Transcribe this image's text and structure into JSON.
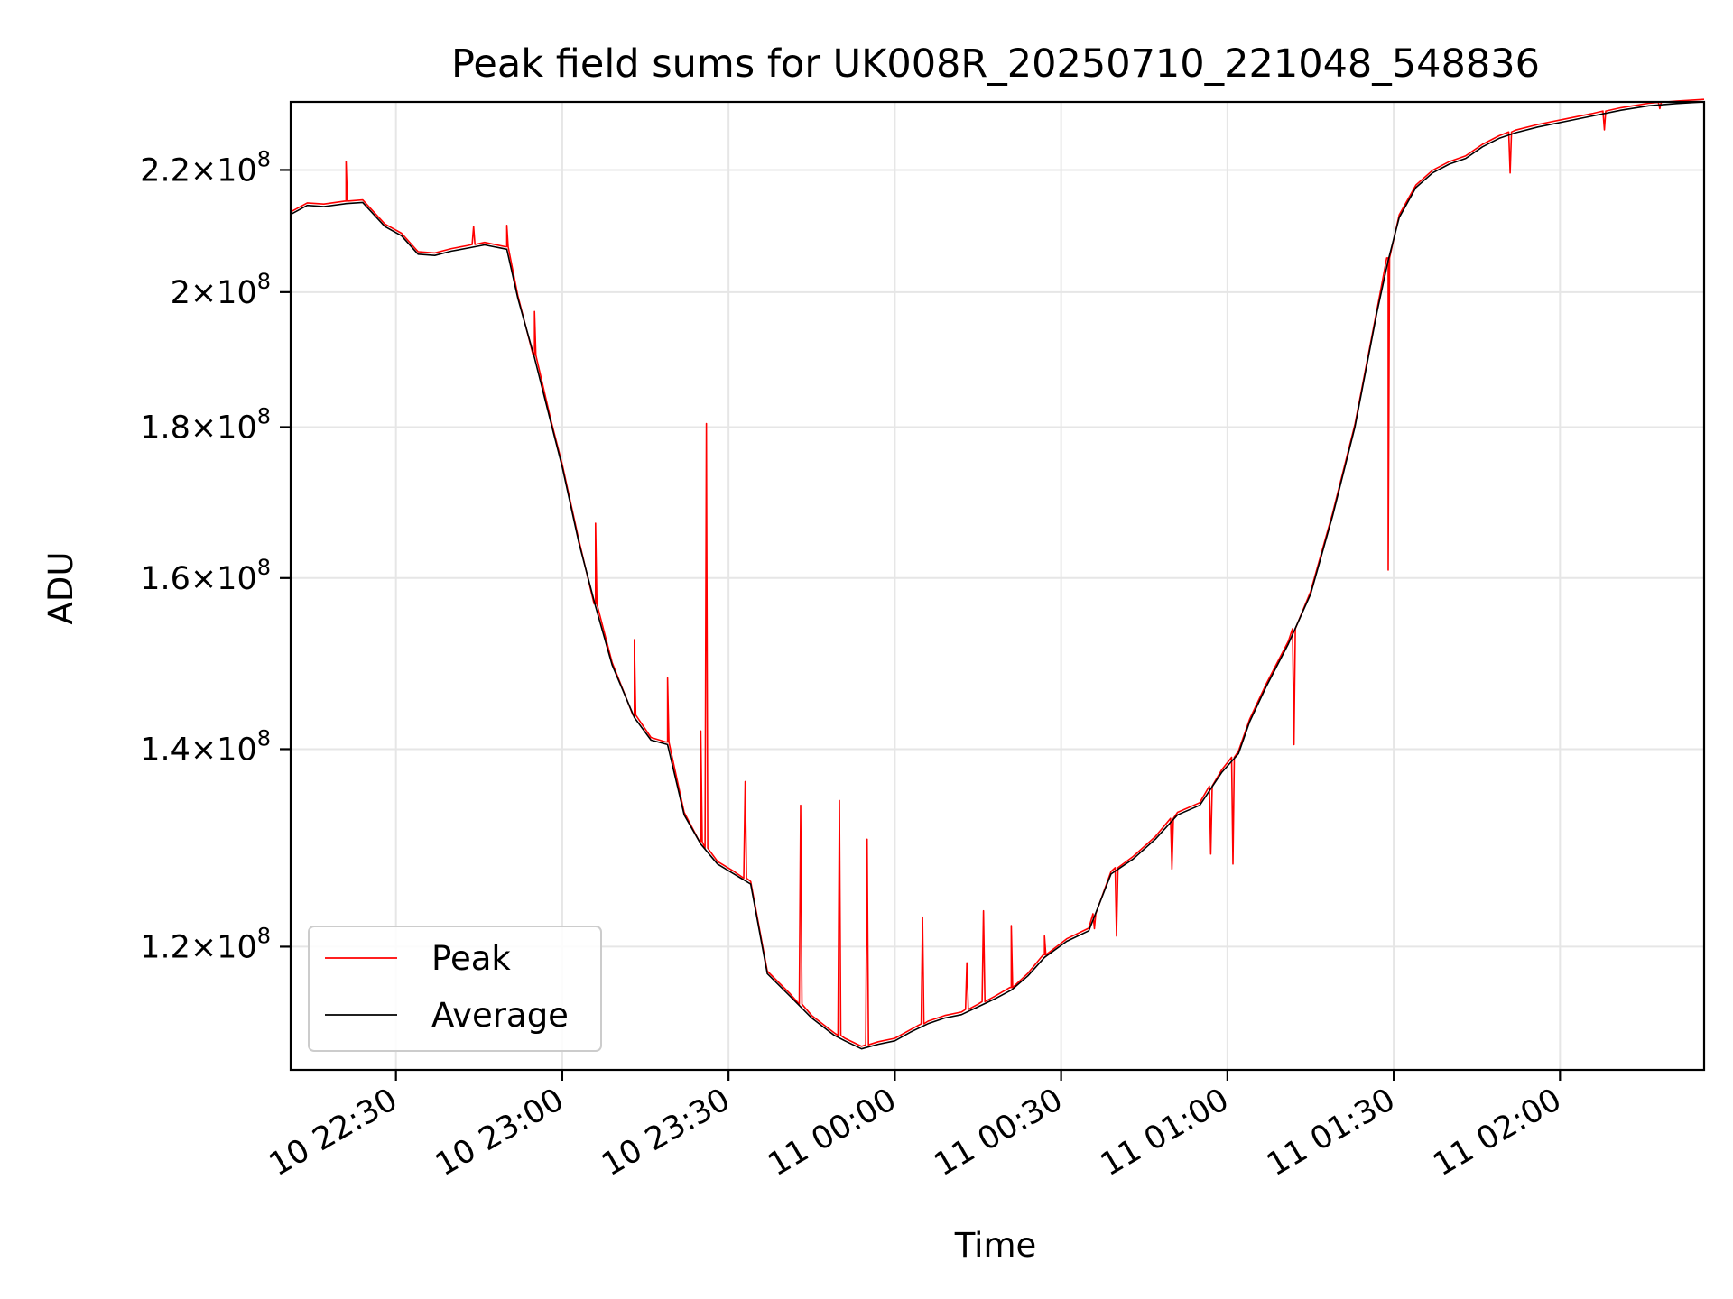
{
  "chart_data": {
    "type": "line",
    "title": "Peak field sums for UK008R_20250710_221048_548836",
    "xlabel": "Time",
    "ylabel": "ADU",
    "yscale": "log",
    "grid": true,
    "legend_position": "lower-left",
    "x_unit": "minutes after 10 22:10",
    "xlim": [
      0,
      255
    ],
    "ylim": [
      109000000,
      232000000
    ],
    "x_ticks": [
      {
        "value": 19,
        "label": "10 22:30"
      },
      {
        "value": 49,
        "label": "10 23:00"
      },
      {
        "value": 79,
        "label": "10 23:30"
      },
      {
        "value": 109,
        "label": "11 00:00"
      },
      {
        "value": 139,
        "label": "11 00:30"
      },
      {
        "value": 169,
        "label": "11 01:00"
      },
      {
        "value": 199,
        "label": "11 01:30"
      },
      {
        "value": 229,
        "label": "11 02:00"
      }
    ],
    "y_ticks": [
      {
        "value": 120000000,
        "mant": "1.2",
        "base": "10",
        "exp": "8"
      },
      {
        "value": 140000000,
        "mant": "1.4",
        "base": "10",
        "exp": "8"
      },
      {
        "value": 160000000,
        "mant": "1.6",
        "base": "10",
        "exp": "8"
      },
      {
        "value": 180000000,
        "mant": "1.8",
        "base": "10",
        "exp": "8"
      },
      {
        "value": 200000000,
        "mant": "2",
        "base": "10",
        "exp": "8"
      },
      {
        "value": 220000000,
        "mant": "2.2",
        "base": "10",
        "exp": "8"
      }
    ],
    "series": [
      {
        "name": "Average",
        "color": "#000000",
        "x": [
          0,
          3,
          6,
          10,
          13,
          17,
          20,
          23,
          26,
          29,
          32,
          35,
          39,
          41,
          44,
          47,
          49,
          52,
          55,
          58,
          62,
          65,
          68,
          71,
          74,
          77,
          80,
          83,
          86,
          90,
          94,
          98,
          100,
          103,
          106,
          109,
          112,
          115,
          118,
          121,
          124,
          127,
          130,
          133,
          136,
          140,
          144,
          148,
          152,
          156,
          160,
          164,
          168,
          171,
          173,
          176,
          180,
          184,
          188,
          192,
          196,
          198,
          200,
          203,
          206,
          209,
          212,
          215,
          218,
          221,
          225,
          230,
          235,
          240,
          245,
          250,
          255
        ],
        "y": [
          212500000,
          214000000,
          213800000,
          214300000,
          214500000,
          210500000,
          209000000,
          206000000,
          205800000,
          206500000,
          207000000,
          207500000,
          206800000,
          199000000,
          190000000,
          180500000,
          174500000,
          164500000,
          156500000,
          149500000,
          143500000,
          141000000,
          140500000,
          133000000,
          130000000,
          128000000,
          127000000,
          126000000,
          117500000,
          115500000,
          113500000,
          112000000,
          111500000,
          110800000,
          111200000,
          111500000,
          112300000,
          113000000,
          113500000,
          113800000,
          114500000,
          115200000,
          116000000,
          117300000,
          119000000,
          120500000,
          121500000,
          127000000,
          128500000,
          130500000,
          133000000,
          134000000,
          137500000,
          139500000,
          143000000,
          147000000,
          152000000,
          158000000,
          168000000,
          180000000,
          197000000,
          205000000,
          212000000,
          217000000,
          219500000,
          221000000,
          222000000,
          224000000,
          225500000,
          226500000,
          227500000,
          228500000,
          229500000,
          230500000,
          231300000,
          231700000,
          232000000
        ]
      },
      {
        "name": "Peak",
        "color": "#ff0000",
        "spikes": [
          {
            "x": 10,
            "y": 221500000
          },
          {
            "x": 33,
            "y": 210500000
          },
          {
            "x": 39,
            "y": 210700000
          },
          {
            "x": 44,
            "y": 197000000
          },
          {
            "x": 55,
            "y": 167000000
          },
          {
            "x": 62,
            "y": 152500000
          },
          {
            "x": 68,
            "y": 148000000
          },
          {
            "x": 74,
            "y": 142000000
          },
          {
            "x": 75,
            "y": 180500000
          },
          {
            "x": 82,
            "y": 136500000
          },
          {
            "x": 92,
            "y": 134000000
          },
          {
            "x": 99,
            "y": 134500000
          },
          {
            "x": 104,
            "y": 130500000
          },
          {
            "x": 114,
            "y": 122800000
          },
          {
            "x": 122,
            "y": 118500000
          },
          {
            "x": 125,
            "y": 123400000
          },
          {
            "x": 130,
            "y": 122000000
          },
          {
            "x": 136,
            "y": 121000000
          },
          {
            "x": 145,
            "y": 121700000
          },
          {
            "x": 149,
            "y": 121000000
          },
          {
            "x": 159,
            "y": 127500000
          },
          {
            "x": 166,
            "y": 129000000
          },
          {
            "x": 170,
            "y": 128000000
          },
          {
            "x": 181,
            "y": 140500000
          },
          {
            "x": 198,
            "y": 161000000
          },
          {
            "x": 220,
            "y": 219500000
          },
          {
            "x": 237,
            "y": 227000000
          },
          {
            "x": 247,
            "y": 230800000
          }
        ]
      }
    ]
  }
}
